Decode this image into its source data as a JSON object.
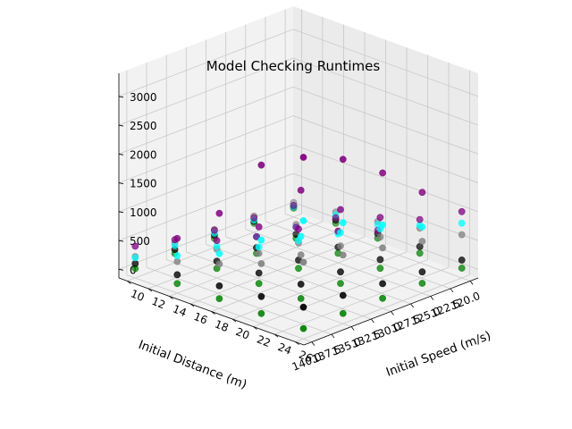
{
  "chart_data": {
    "type": "scatter",
    "projection": "3d",
    "title": "Model Checking Runtimes",
    "xlabel": "Initial Distance (m)",
    "ylabel": "Initial Speed (m/s)",
    "zlabel": "",
    "xlim": [
      119.0,
      141.0
    ],
    "ylim": [
      9.2,
      26.8
    ],
    "zlim": [
      -150,
      3400
    ],
    "x_ticks": [
      "120.0",
      "122.5",
      "125.0",
      "127.5",
      "130.0",
      "132.5",
      "135.0",
      "137.5",
      "140.0"
    ],
    "y_ticks": [
      "10",
      "12",
      "14",
      "16",
      "18",
      "20",
      "22",
      "24",
      "26"
    ],
    "z_ticks": [
      "0",
      "500",
      "1000",
      "1500",
      "2000",
      "2500",
      "3000"
    ],
    "grid": true,
    "legend": "none",
    "x": [
      120,
      125,
      130,
      135,
      140
    ],
    "y": [
      10,
      14,
      18,
      22,
      26
    ],
    "series": [
      {
        "color": "#008000",
        "z": [
          [
            5,
            8,
            12,
            15,
            20
          ],
          [
            6,
            10,
            14,
            18,
            22
          ],
          [
            8,
            12,
            16,
            20,
            25
          ],
          [
            10,
            14,
            18,
            22,
            28
          ],
          [
            12,
            16,
            20,
            25,
            30
          ]
        ]
      },
      {
        "color": "#000000",
        "z": [
          [
            30,
            60,
            90,
            130,
            160
          ],
          [
            40,
            80,
            120,
            170,
            220
          ],
          [
            60,
            110,
            160,
            220,
            280
          ],
          [
            80,
            140,
            200,
            270,
            340
          ],
          [
            100,
            170,
            240,
            320,
            400
          ]
        ]
      },
      {
        "color": "#808080",
        "z": [
          [
            100,
            200,
            300,
            450,
            600
          ],
          [
            130,
            250,
            380,
            560,
            750
          ],
          [
            160,
            300,
            460,
            670,
            900
          ],
          [
            190,
            350,
            540,
            780,
            1040
          ],
          [
            220,
            400,
            620,
            890,
            1180
          ]
        ]
      },
      {
        "color": "#00ffff",
        "z": [
          [
            30,
            150,
            250,
            500,
            800
          ],
          [
            60,
            200,
            350,
            700,
            1000
          ],
          [
            100,
            300,
            500,
            900,
            1300
          ],
          [
            150,
            400,
            650,
            1100,
            1600
          ],
          [
            200,
            500,
            800,
            1300,
            1900
          ]
        ]
      },
      {
        "color": "#800080",
        "z": [
          [
            50,
            100,
            150,
            600,
            1000
          ],
          [
            100,
            200,
            400,
            900,
            1600
          ],
          [
            150,
            300,
            700,
            1300,
            2200
          ],
          [
            250,
            500,
            1000,
            1900,
            2700
          ],
          [
            400,
            800,
            1500,
            2600,
            3000
          ]
        ]
      }
    ]
  }
}
